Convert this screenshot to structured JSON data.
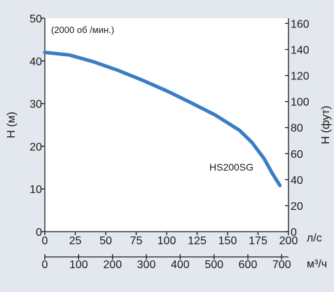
{
  "chart_data": {
    "type": "line",
    "annotation": "(2000 об /мин.)",
    "series": [
      {
        "name": "HS200SG",
        "x": [
          0,
          20,
          40,
          60,
          80,
          100,
          120,
          140,
          160,
          170,
          180,
          187,
          193
        ],
        "y": [
          42,
          41.4,
          39.8,
          37.8,
          35.5,
          33,
          30.2,
          27.3,
          23.7,
          20.9,
          17.1,
          13.5,
          10.8
        ]
      }
    ],
    "x_primary": {
      "ticks": [
        0,
        25,
        50,
        75,
        100,
        125,
        150,
        175,
        200
      ],
      "unit": "л/с",
      "range": [
        0,
        200
      ]
    },
    "x_secondary": {
      "ticks": [
        0,
        100,
        200,
        300,
        400,
        500,
        600,
        700
      ],
      "unit": "м³/ч",
      "range": [
        0,
        720
      ]
    },
    "y_left": {
      "label": "H (м)",
      "ticks": [
        0,
        10,
        20,
        30,
        40,
        50
      ],
      "range": [
        0,
        50
      ]
    },
    "y_right": {
      "label": "H (фут)",
      "ticks": [
        0,
        20,
        40,
        60,
        80,
        100,
        120,
        140,
        160
      ],
      "range": [
        0,
        164
      ]
    },
    "grid": false,
    "colors": {
      "background": "#e2e8ee",
      "plot_area": "#ffffff",
      "axis": "#1a1a1a",
      "line": "#3b7dc4"
    }
  }
}
